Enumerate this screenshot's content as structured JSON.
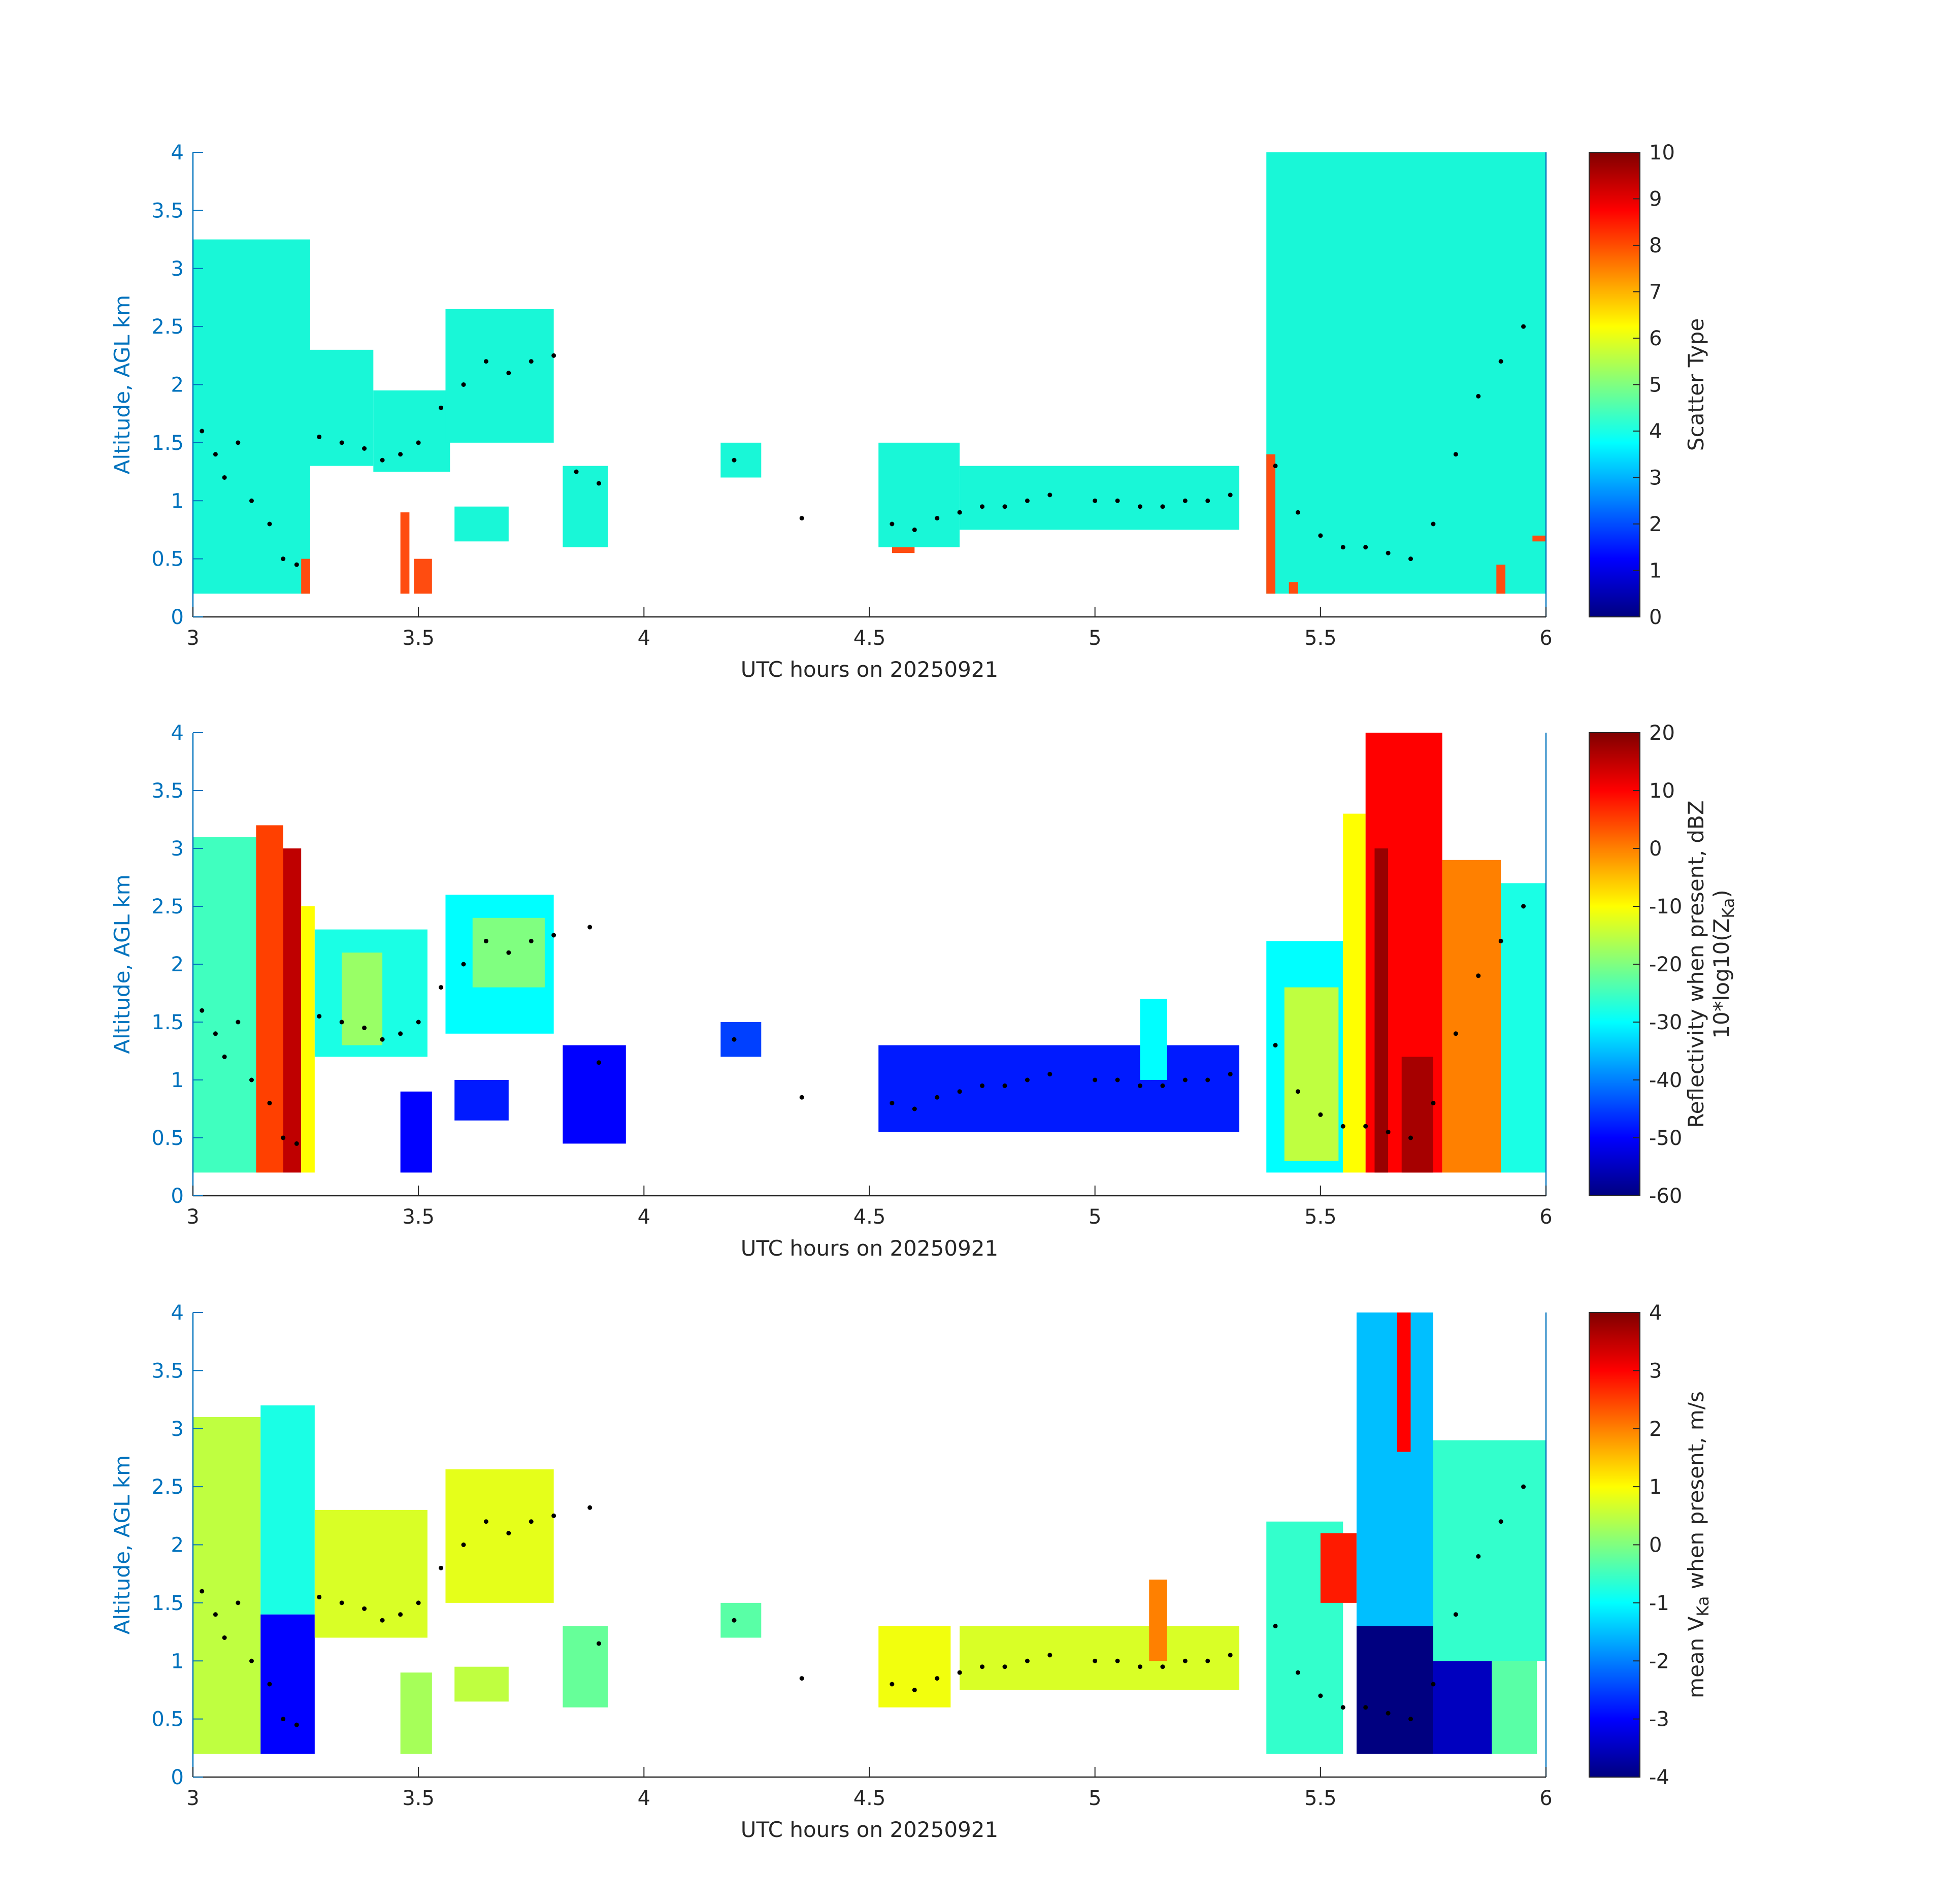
{
  "figure": {
    "date_label": "20250921",
    "colors": {
      "axis_y": "#0072BD",
      "axis_x": "#262626",
      "scatter_cloud": "#19F7D7",
      "scatter_precip": "#FF4C10",
      "marker": "#000000"
    },
    "colormap": "jet"
  },
  "chart_data": [
    {
      "type": "heatmap",
      "xlabel": "UTC hours on 20250921",
      "ylabel": "Altitude, AGL km",
      "xlim": [
        3,
        6
      ],
      "ylim": [
        0,
        4
      ],
      "xticks": [
        "3",
        "3.5",
        "4",
        "4.5",
        "5",
        "5.5",
        "6"
      ],
      "yticks": [
        "0",
        "0.5",
        "1",
        "1.5",
        "2",
        "2.5",
        "3",
        "3.5",
        "4"
      ],
      "colorbar": {
        "label": "Scatter Type",
        "range": [
          0,
          10
        ],
        "ticks": [
          "0",
          "1",
          "2",
          "3",
          "4",
          "5",
          "6",
          "7",
          "8",
          "9",
          "10"
        ]
      },
      "series": [
        {
          "name": "",
          "value": 4,
          "segments": [
            {
              "t": [
                3.0,
                3.26
              ],
              "bottom": 0.2,
              "top": 3.25
            },
            {
              "t": [
                3.26,
                3.4
              ],
              "bottom": 1.3,
              "top": 2.3
            },
            {
              "t": [
                3.4,
                3.57
              ],
              "bottom": 1.25,
              "top": 1.95
            },
            {
              "t": [
                3.56,
                3.8
              ],
              "bottom": 1.5,
              "top": 2.65
            },
            {
              "t": [
                3.58,
                3.7
              ],
              "bottom": 0.65,
              "top": 0.95
            },
            {
              "t": [
                3.82,
                3.92
              ],
              "bottom": 0.6,
              "top": 1.3
            },
            {
              "t": [
                4.17,
                4.26
              ],
              "bottom": 1.2,
              "top": 1.5
            },
            {
              "t": [
                4.52,
                4.7
              ],
              "bottom": 0.6,
              "top": 1.5
            },
            {
              "t": [
                4.7,
                5.32
              ],
              "bottom": 0.75,
              "top": 1.3
            },
            {
              "t": [
                5.38,
                6.0
              ],
              "bottom": 0.2,
              "top": 4.0
            }
          ]
        },
        {
          "name": "",
          "value": 8,
          "segments": [
            {
              "t": [
                3.24,
                3.26
              ],
              "bottom": 0.2,
              "top": 0.5
            },
            {
              "t": [
                3.46,
                3.48
              ],
              "bottom": 0.2,
              "top": 0.9
            },
            {
              "t": [
                3.49,
                3.53
              ],
              "bottom": 0.2,
              "top": 0.5
            },
            {
              "t": [
                4.55,
                4.6
              ],
              "bottom": 0.55,
              "top": 0.6
            },
            {
              "t": [
                5.38,
                5.4
              ],
              "bottom": 0.2,
              "top": 1.4
            },
            {
              "t": [
                5.43,
                5.45
              ],
              "bottom": 0.2,
              "top": 0.3
            },
            {
              "t": [
                5.89,
                5.91
              ],
              "bottom": 0.2,
              "top": 0.45
            },
            {
              "t": [
                5.97,
                6.0
              ],
              "bottom": 0.65,
              "top": 0.7
            }
          ]
        }
      ],
      "markers": {
        "x": [
          3.02,
          3.05,
          3.07,
          3.1,
          3.13,
          3.17,
          3.2,
          3.23,
          3.28,
          3.33,
          3.38,
          3.42,
          3.46,
          3.5,
          3.55,
          3.6,
          3.65,
          3.7,
          3.75,
          3.8,
          3.85,
          3.9,
          4.2,
          4.35,
          4.55,
          4.6,
          4.65,
          4.7,
          4.75,
          4.8,
          4.85,
          4.9,
          5.0,
          5.05,
          5.1,
          5.15,
          5.2,
          5.25,
          5.3,
          5.4,
          5.45,
          5.5,
          5.55,
          5.6,
          5.65,
          5.7,
          5.75,
          5.8,
          5.85,
          5.9,
          5.95
        ],
        "y": [
          1.6,
          1.4,
          1.2,
          1.5,
          1.0,
          0.8,
          0.5,
          0.45,
          1.55,
          1.5,
          1.45,
          1.35,
          1.4,
          1.5,
          1.8,
          2.0,
          2.2,
          2.1,
          2.2,
          2.25,
          1.25,
          1.15,
          1.35,
          0.85,
          0.8,
          0.75,
          0.85,
          0.9,
          0.95,
          0.95,
          1.0,
          1.05,
          1.0,
          1.0,
          0.95,
          0.95,
          1.0,
          1.0,
          1.05,
          1.3,
          0.9,
          0.7,
          0.6,
          0.6,
          0.55,
          0.5,
          0.8,
          1.4,
          1.9,
          2.2,
          2.5
        ]
      }
    },
    {
      "type": "heatmap",
      "xlabel": "UTC hours on 20250921",
      "ylabel": "Altitude, AGL km",
      "xlim": [
        3,
        6
      ],
      "ylim": [
        0,
        4
      ],
      "xticks": [
        "3",
        "3.5",
        "4",
        "4.5",
        "5",
        "5.5",
        "6"
      ],
      "yticks": [
        "0",
        "0.5",
        "1",
        "1.5",
        "2",
        "2.5",
        "3",
        "3.5",
        "4"
      ],
      "colorbar": {
        "label_line1": "Reflectivity when present, dBZ",
        "label_line2_prefix": "10*log10(Z",
        "label_line2_sub": "Ka",
        "label_line2_suffix": ")",
        "range": [
          -60,
          20
        ],
        "ticks": [
          "-60",
          "-50",
          "-40",
          "-30",
          "-20",
          "-10",
          "0",
          "10",
          "20"
        ]
      },
      "series": [
        {
          "name": "",
          "segments": [
            {
              "t": [
                3.0,
                3.14
              ],
              "bottom": 0.2,
              "top": 3.1,
              "value": -25
            },
            {
              "t": [
                3.14,
                3.2
              ],
              "bottom": 0.2,
              "top": 3.2,
              "value": 5
            },
            {
              "t": [
                3.2,
                3.24
              ],
              "bottom": 0.2,
              "top": 3.0,
              "value": 15
            },
            {
              "t": [
                3.24,
                3.27
              ],
              "bottom": 0.2,
              "top": 2.5,
              "value": -10
            },
            {
              "t": [
                3.27,
                3.52
              ],
              "bottom": 1.2,
              "top": 2.3,
              "value": -28
            },
            {
              "t": [
                3.33,
                3.42
              ],
              "bottom": 1.3,
              "top": 2.1,
              "value": -18
            },
            {
              "t": [
                3.46,
                3.53
              ],
              "bottom": 0.2,
              "top": 0.9,
              "value": -50
            },
            {
              "t": [
                3.56,
                3.8
              ],
              "bottom": 1.4,
              "top": 2.6,
              "value": -30
            },
            {
              "t": [
                3.62,
                3.78
              ],
              "bottom": 1.8,
              "top": 2.4,
              "value": -20
            },
            {
              "t": [
                3.58,
                3.7
              ],
              "bottom": 0.65,
              "top": 1.0,
              "value": -48
            },
            {
              "t": [
                3.82,
                3.96
              ],
              "bottom": 0.45,
              "top": 1.3,
              "value": -50
            },
            {
              "t": [
                4.17,
                4.26
              ],
              "bottom": 1.2,
              "top": 1.5,
              "value": -45
            },
            {
              "t": [
                4.52,
                5.32
              ],
              "bottom": 0.55,
              "top": 1.3,
              "value": -48
            },
            {
              "t": [
                5.1,
                5.16
              ],
              "bottom": 1.0,
              "top": 1.7,
              "value": -30
            },
            {
              "t": [
                5.38,
                5.55
              ],
              "bottom": 0.2,
              "top": 2.2,
              "value": -30
            },
            {
              "t": [
                5.42,
                5.54
              ],
              "bottom": 0.3,
              "top": 1.8,
              "value": -15
            },
            {
              "t": [
                5.55,
                5.6
              ],
              "bottom": 0.2,
              "top": 3.3,
              "value": -10
            },
            {
              "t": [
                5.6,
                5.77
              ],
              "bottom": 0.2,
              "top": 4.0,
              "value": 10
            },
            {
              "t": [
                5.62,
                5.65
              ],
              "bottom": 0.2,
              "top": 3.0,
              "value": 18
            },
            {
              "t": [
                5.68,
                5.75
              ],
              "bottom": 0.2,
              "top": 1.2,
              "value": 17
            },
            {
              "t": [
                5.77,
                5.9
              ],
              "bottom": 0.2,
              "top": 2.9,
              "value": 0
            },
            {
              "t": [
                5.9,
                6.0
              ],
              "bottom": 0.2,
              "top": 2.7,
              "value": -28
            }
          ]
        }
      ],
      "markers": {
        "x": [
          3.02,
          3.05,
          3.07,
          3.1,
          3.13,
          3.17,
          3.2,
          3.23,
          3.28,
          3.33,
          3.38,
          3.42,
          3.46,
          3.5,
          3.55,
          3.6,
          3.65,
          3.7,
          3.75,
          3.8,
          3.88,
          3.9,
          4.2,
          4.35,
          4.55,
          4.6,
          4.65,
          4.7,
          4.75,
          4.8,
          4.85,
          4.9,
          5.0,
          5.05,
          5.1,
          5.15,
          5.2,
          5.25,
          5.3,
          5.4,
          5.45,
          5.5,
          5.55,
          5.6,
          5.65,
          5.7,
          5.75,
          5.8,
          5.85,
          5.9,
          5.95
        ],
        "y": [
          1.6,
          1.4,
          1.2,
          1.5,
          1.0,
          0.8,
          0.5,
          0.45,
          1.55,
          1.5,
          1.45,
          1.35,
          1.4,
          1.5,
          1.8,
          2.0,
          2.2,
          2.1,
          2.2,
          2.25,
          2.32,
          1.15,
          1.35,
          0.85,
          0.8,
          0.75,
          0.85,
          0.9,
          0.95,
          0.95,
          1.0,
          1.05,
          1.0,
          1.0,
          0.95,
          0.95,
          1.0,
          1.0,
          1.05,
          1.3,
          0.9,
          0.7,
          0.6,
          0.6,
          0.55,
          0.5,
          0.8,
          1.4,
          1.9,
          2.2,
          2.5
        ]
      }
    },
    {
      "type": "heatmap",
      "xlabel": "UTC hours on 20250921",
      "ylabel": "Altitude, AGL km",
      "xlim": [
        3,
        6
      ],
      "ylim": [
        0,
        4
      ],
      "xticks": [
        "3",
        "3.5",
        "4",
        "4.5",
        "5",
        "5.5",
        "6"
      ],
      "yticks": [
        "0",
        "0.5",
        "1",
        "1.5",
        "2",
        "2.5",
        "3",
        "3.5",
        "4"
      ],
      "colorbar": {
        "label_prefix": "mean V",
        "label_sub": "Ka",
        "label_suffix": " when present, m/s",
        "range": [
          -4,
          4
        ],
        "ticks": [
          "-4",
          "-3",
          "-2",
          "-1",
          "0",
          "1",
          "2",
          "3",
          "4"
        ]
      },
      "series": [
        {
          "name": "",
          "segments": [
            {
              "t": [
                3.0,
                3.15
              ],
              "bottom": 0.2,
              "top": 3.1,
              "value": 0.5
            },
            {
              "t": [
                3.15,
                3.27
              ],
              "bottom": 1.4,
              "top": 3.2,
              "value": -0.8
            },
            {
              "t": [
                3.15,
                3.27
              ],
              "bottom": 0.2,
              "top": 1.4,
              "value": -3.0
            },
            {
              "t": [
                3.27,
                3.52
              ],
              "bottom": 1.2,
              "top": 2.3,
              "value": 0.7
            },
            {
              "t": [
                3.46,
                3.53
              ],
              "bottom": 0.2,
              "top": 0.9,
              "value": 0.3
            },
            {
              "t": [
                3.56,
                3.8
              ],
              "bottom": 1.5,
              "top": 2.65,
              "value": 0.8
            },
            {
              "t": [
                3.58,
                3.7
              ],
              "bottom": 0.65,
              "top": 0.95,
              "value": 0.5
            },
            {
              "t": [
                3.82,
                3.92
              ],
              "bottom": 0.6,
              "top": 1.3,
              "value": -0.2
            },
            {
              "t": [
                4.17,
                4.26
              ],
              "bottom": 1.2,
              "top": 1.5,
              "value": -0.3
            },
            {
              "t": [
                4.52,
                4.68
              ],
              "bottom": 0.6,
              "top": 1.3,
              "value": 0.9
            },
            {
              "t": [
                4.7,
                5.32
              ],
              "bottom": 0.75,
              "top": 1.3,
              "value": 0.7
            },
            {
              "t": [
                5.12,
                5.16
              ],
              "bottom": 1.0,
              "top": 1.7,
              "value": 2.0
            },
            {
              "t": [
                5.38,
                5.55
              ],
              "bottom": 0.2,
              "top": 2.2,
              "value": -0.6
            },
            {
              "t": [
                5.5,
                5.58
              ],
              "bottom": 1.5,
              "top": 2.1,
              "value": 2.8
            },
            {
              "t": [
                5.58,
                5.75
              ],
              "bottom": 0.2,
              "top": 1.3,
              "value": -4.0
            },
            {
              "t": [
                5.58,
                5.75
              ],
              "bottom": 1.3,
              "top": 4.0,
              "value": -1.5
            },
            {
              "t": [
                5.67,
                5.7
              ],
              "bottom": 2.8,
              "top": 4.0,
              "value": 3.0
            },
            {
              "t": [
                5.75,
                5.88
              ],
              "bottom": 0.2,
              "top": 1.0,
              "value": -3.5
            },
            {
              "t": [
                5.75,
                6.0
              ],
              "bottom": 1.0,
              "top": 2.9,
              "value": -0.6
            },
            {
              "t": [
                5.88,
                5.98
              ],
              "bottom": 0.2,
              "top": 1.0,
              "value": -0.3
            }
          ]
        }
      ],
      "markers": {
        "x": [
          3.02,
          3.05,
          3.07,
          3.1,
          3.13,
          3.17,
          3.2,
          3.23,
          3.28,
          3.33,
          3.38,
          3.42,
          3.46,
          3.5,
          3.55,
          3.6,
          3.65,
          3.7,
          3.75,
          3.8,
          3.88,
          3.9,
          4.2,
          4.35,
          4.55,
          4.6,
          4.65,
          4.7,
          4.75,
          4.8,
          4.85,
          4.9,
          5.0,
          5.05,
          5.1,
          5.15,
          5.2,
          5.25,
          5.3,
          5.4,
          5.45,
          5.5,
          5.55,
          5.6,
          5.65,
          5.7,
          5.75,
          5.8,
          5.85,
          5.9,
          5.95
        ],
        "y": [
          1.6,
          1.4,
          1.2,
          1.5,
          1.0,
          0.8,
          0.5,
          0.45,
          1.55,
          1.5,
          1.45,
          1.35,
          1.4,
          1.5,
          1.8,
          2.0,
          2.2,
          2.1,
          2.2,
          2.25,
          2.32,
          1.15,
          1.35,
          0.85,
          0.8,
          0.75,
          0.85,
          0.9,
          0.95,
          0.95,
          1.0,
          1.05,
          1.0,
          1.0,
          0.95,
          0.95,
          1.0,
          1.0,
          1.05,
          1.3,
          0.9,
          0.7,
          0.6,
          0.6,
          0.55,
          0.5,
          0.8,
          1.4,
          1.9,
          2.2,
          2.5
        ]
      }
    }
  ]
}
